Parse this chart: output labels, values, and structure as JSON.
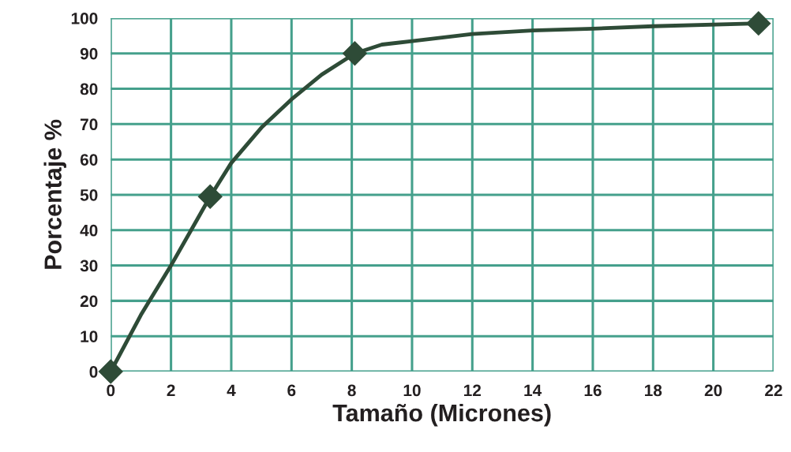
{
  "chart_data": {
    "type": "line",
    "xlabel": "Tamaño (Micrones)",
    "ylabel": "Porcentaje %",
    "series": [
      {
        "marker": "none",
        "color": "#2e4b37",
        "x": [
          0,
          1,
          2,
          3.3,
          4,
          5,
          6,
          7,
          8.1,
          9,
          10,
          12,
          14,
          16,
          18,
          21.5
        ],
        "values": [
          0,
          16,
          30,
          49.5,
          59,
          69,
          77,
          84,
          90,
          92.5,
          93.5,
          95.5,
          96.5,
          97,
          97.7,
          98.5
        ]
      },
      {
        "type": "scatter",
        "marker": "diamond",
        "color": "#2e4b37",
        "x": [
          0,
          3.3,
          8.1,
          21.5
        ],
        "values": [
          0,
          49.5,
          90,
          98.5
        ]
      }
    ],
    "xlim": [
      0,
      22
    ],
    "xticks": [
      0,
      2,
      4,
      6,
      8,
      10,
      12,
      14,
      16,
      18,
      20,
      22
    ],
    "ylim": [
      0,
      100
    ],
    "yticks": [
      0,
      10,
      20,
      30,
      40,
      50,
      60,
      70,
      80,
      90,
      100
    ],
    "grid": true,
    "line_style": "solid",
    "legend": false
  }
}
